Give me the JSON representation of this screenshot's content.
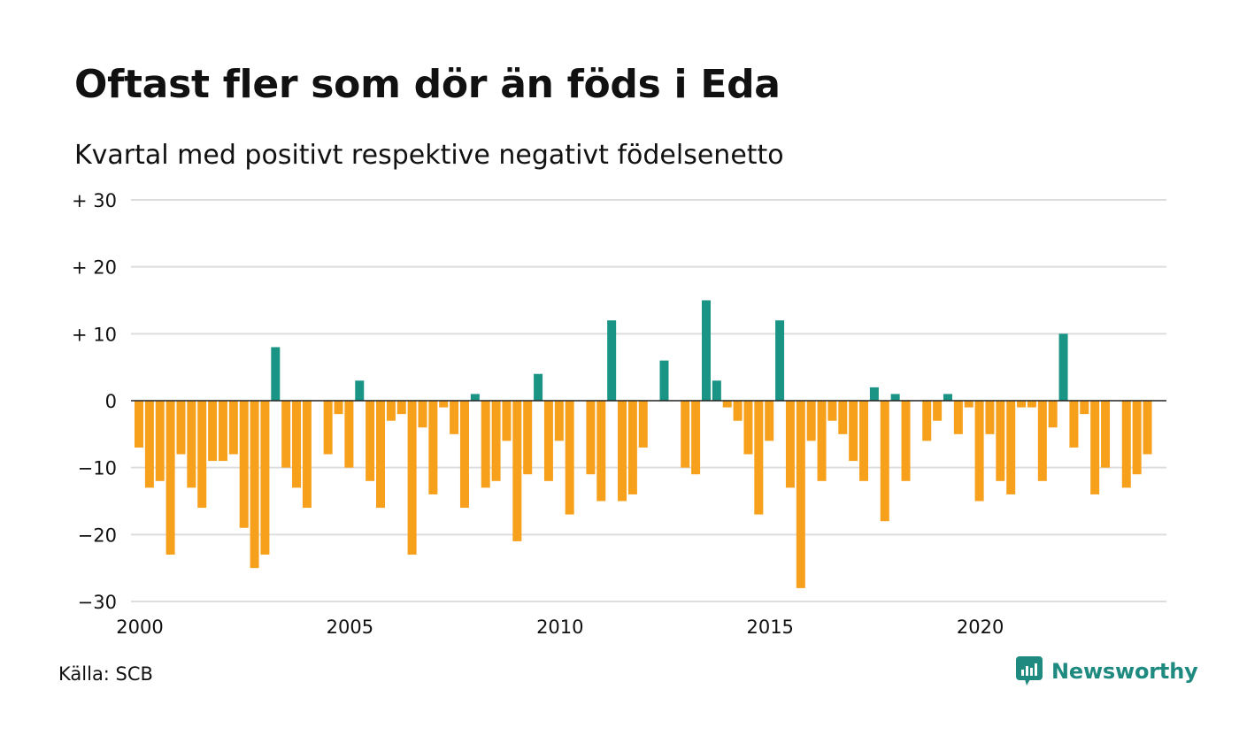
{
  "title": "Oftast fler som dör än föds i Eda",
  "subtitle": "Kvartal med positivt respektive negativt födelsenetto",
  "source": "Källa: SCB",
  "brand": {
    "name": "Newsworthy",
    "icon": "newsworthy-logo-icon"
  },
  "colors": {
    "positive": "#1a9585",
    "negative": "#f6a01c",
    "grid": "#dddddd",
    "zero": "#222222"
  },
  "chart_data": {
    "type": "bar",
    "title": "Oftast fler som dör än föds i Eda",
    "subtitle": "Kvartal med positivt respektive negativt födelsenetto",
    "start_year": 2000,
    "periods_per_year": 4,
    "x_ticks": [
      "2000",
      "2005",
      "2010",
      "2015",
      "2020"
    ],
    "y_ticks": [
      {
        "value": 30,
        "label": "+ 30"
      },
      {
        "value": 20,
        "label": "+ 20"
      },
      {
        "value": 10,
        "label": "+ 10"
      },
      {
        "value": 0,
        "label": "0"
      },
      {
        "value": -10,
        "label": "−10"
      },
      {
        "value": -20,
        "label": "−20"
      },
      {
        "value": -30,
        "label": "−30"
      }
    ],
    "ylim": [
      -30,
      30
    ],
    "grid": true,
    "values": [
      -7,
      -13,
      -12,
      -23,
      -8,
      -13,
      -16,
      -9,
      -9,
      -8,
      -19,
      -25,
      -23,
      8,
      -10,
      -13,
      -16,
      0,
      -8,
      -2,
      -10,
      3,
      -12,
      -16,
      -3,
      -2,
      -23,
      -4,
      -14,
      -1,
      -5,
      -16,
      1,
      -13,
      -12,
      -6,
      -21,
      -11,
      4,
      -12,
      -6,
      -17,
      0,
      -11,
      -15,
      12,
      -15,
      -14,
      -7,
      0,
      6,
      0,
      -10,
      -11,
      15,
      3,
      -1,
      -3,
      -8,
      -17,
      -6,
      12,
      -13,
      -28,
      -6,
      -12,
      -3,
      -5,
      -9,
      -12,
      2,
      -18,
      1,
      -12,
      0,
      -6,
      -3,
      1,
      -5,
      -1,
      -15,
      -5,
      -12,
      -14,
      -1,
      -1,
      -12,
      -4,
      10,
      -7,
      -2,
      -14,
      -10,
      0,
      -13,
      -11,
      -8
    ]
  }
}
